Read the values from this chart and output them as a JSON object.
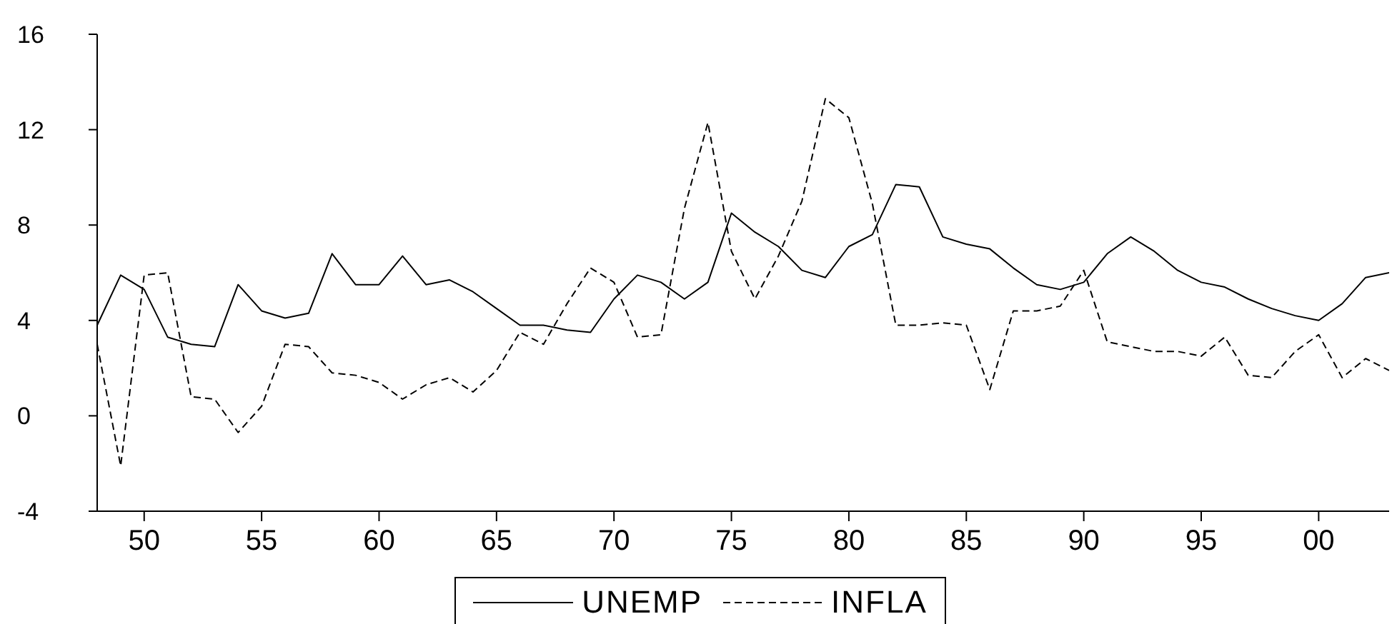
{
  "chart_data": {
    "type": "line",
    "x": [
      1948,
      1949,
      1950,
      1951,
      1952,
      1953,
      1954,
      1955,
      1956,
      1957,
      1958,
      1959,
      1960,
      1961,
      1962,
      1963,
      1964,
      1965,
      1966,
      1967,
      1968,
      1969,
      1970,
      1971,
      1972,
      1973,
      1974,
      1975,
      1976,
      1977,
      1978,
      1979,
      1980,
      1981,
      1982,
      1983,
      1984,
      1985,
      1986,
      1987,
      1988,
      1989,
      1990,
      1991,
      1992,
      1993,
      1994,
      1995,
      1996,
      1997,
      1998,
      1999,
      2000,
      2001,
      2002,
      2003
    ],
    "series": [
      {
        "name": "UNEMP",
        "color": "#000000",
        "line_style": "solid",
        "values": [
          3.8,
          5.9,
          5.3,
          3.3,
          3.0,
          2.9,
          5.5,
          4.4,
          4.1,
          4.3,
          6.8,
          5.5,
          5.5,
          6.7,
          5.5,
          5.7,
          5.2,
          4.5,
          3.8,
          3.8,
          3.6,
          3.5,
          4.9,
          5.9,
          5.6,
          4.9,
          5.6,
          8.5,
          7.7,
          7.1,
          6.1,
          5.8,
          7.1,
          7.6,
          9.7,
          9.6,
          7.5,
          7.2,
          7.0,
          6.2,
          5.5,
          5.3,
          5.6,
          6.8,
          7.5,
          6.9,
          6.1,
          5.6,
          5.4,
          4.9,
          4.5,
          4.2,
          4.0,
          4.7,
          5.8,
          6.0
        ]
      },
      {
        "name": "INFLA",
        "color": "#000000",
        "line_style": "dashed",
        "values": [
          3.0,
          -2.1,
          5.9,
          6.0,
          0.8,
          0.7,
          -0.7,
          0.4,
          3.0,
          2.9,
          1.8,
          1.7,
          1.4,
          0.7,
          1.3,
          1.6,
          1.0,
          1.9,
          3.5,
          3.0,
          4.7,
          6.2,
          5.6,
          3.3,
          3.4,
          8.7,
          12.3,
          6.9,
          4.9,
          6.7,
          9.0,
          13.3,
          12.5,
          8.9,
          3.8,
          3.8,
          3.9,
          3.8,
          1.1,
          4.4,
          4.4,
          4.6,
          6.1,
          3.1,
          2.9,
          2.7,
          2.7,
          2.5,
          3.3,
          1.7,
          1.6,
          2.7,
          3.4,
          1.6,
          2.4,
          1.9
        ]
      }
    ],
    "xlim": [
      1948,
      2003
    ],
    "xticks": [
      {
        "value": 1950,
        "label": "50"
      },
      {
        "value": 1955,
        "label": "55"
      },
      {
        "value": 1960,
        "label": "60"
      },
      {
        "value": 1965,
        "label": "65"
      },
      {
        "value": 1970,
        "label": "70"
      },
      {
        "value": 1975,
        "label": "75"
      },
      {
        "value": 1980,
        "label": "80"
      },
      {
        "value": 1985,
        "label": "85"
      },
      {
        "value": 1990,
        "label": "90"
      },
      {
        "value": 1995,
        "label": "95"
      },
      {
        "value": 2000,
        "label": "00"
      }
    ],
    "ylim": [
      -4,
      16
    ],
    "yticks": [
      -4,
      0,
      4,
      8,
      12,
      16
    ],
    "grid": false,
    "legend": "bottom",
    "marker": "none"
  }
}
